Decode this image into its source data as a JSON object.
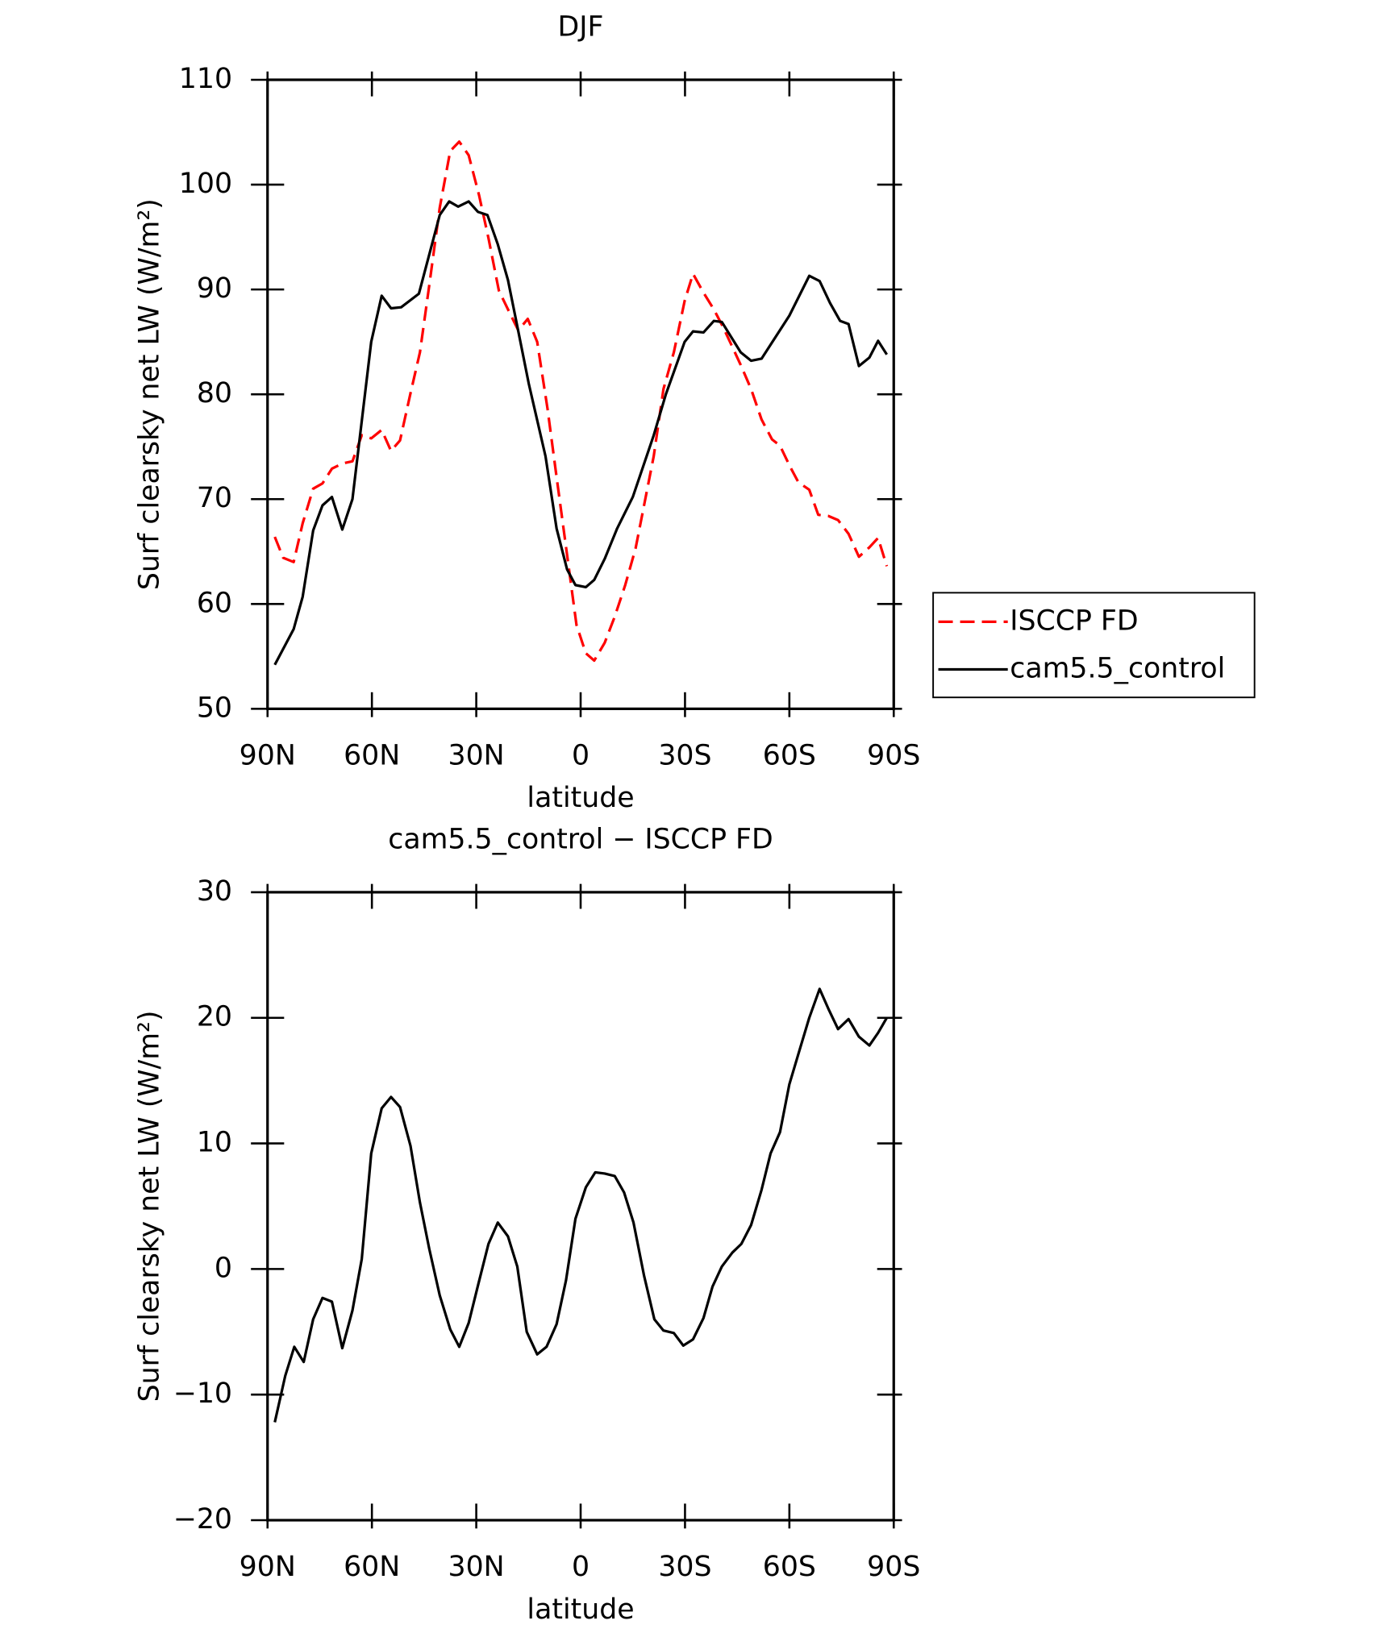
{
  "chart_data": [
    {
      "type": "line",
      "title": "DJF",
      "xlabel": "latitude",
      "ylabel": "Surf clearsky net LW (W/m²)",
      "xlim": [
        90,
        -90
      ],
      "ylim": [
        50,
        110
      ],
      "xticks": [
        {
          "value": 90,
          "label": "90N"
        },
        {
          "value": 60,
          "label": "60N"
        },
        {
          "value": 30,
          "label": "30N"
        },
        0,
        {
          "value": -30,
          "label": "30S"
        },
        {
          "value": -60,
          "label": "60S"
        },
        {
          "value": -90,
          "label": "90S"
        }
      ],
      "yticks": [
        50,
        60,
        70,
        80,
        90,
        100,
        110
      ],
      "legend": "outside-right",
      "series": [
        {
          "name": "ISCCP FD",
          "color": "#ff0000",
          "dash": true,
          "x": [
            87.9,
            85.5,
            82.5,
            79.9,
            76.9,
            74.2,
            71.5,
            68.5,
            65.6,
            62.9,
            60.2,
            57.2,
            54.5,
            51.9,
            48.9,
            46.2,
            43.5,
            40.5,
            37.5,
            34.9,
            32.2,
            29.2,
            26.5,
            23.5,
            20.6,
            17.9,
            15.2,
            12.5,
            9.5,
            6.9,
            3.9,
            1.2,
            -1.5,
            -3.9,
            -6.9,
            -9.8,
            -12.8,
            -15.8,
            -21,
            -23.8,
            -26.8,
            -29.9,
            -32.3,
            -35.3,
            -38.3,
            -40.8,
            -43.2,
            -46,
            -49,
            -52,
            -55,
            -57.3,
            -60.2,
            -62.6,
            -65.7,
            -68.3,
            -71.2,
            -74,
            -77,
            -80,
            -83,
            -85.5,
            -88
          ],
          "values": [
            66.4,
            64.4,
            64.0,
            67.7,
            71.0,
            71.5,
            72.9,
            73.4,
            73.6,
            76.1,
            75.8,
            76.6,
            74.6,
            75.6,
            80.1,
            84.0,
            90.4,
            97.8,
            103.2,
            104.1,
            102.8,
            99.0,
            94.9,
            89.9,
            87.9,
            86.1,
            87.2,
            85.0,
            78.6,
            72.1,
            64.7,
            58.0,
            55.3,
            54.6,
            56.3,
            58.8,
            61.8,
            65.3,
            74.1,
            80.5,
            84.0,
            88.9,
            91.5,
            89.7,
            88.1,
            86.5,
            84.8,
            82.8,
            80.5,
            77.6,
            75.7,
            75.1,
            73.1,
            71.6,
            70.9,
            68.5,
            68.4,
            68.0,
            66.7,
            64.5,
            65.4,
            66.3,
            63.6
          ]
        },
        {
          "name": "cam5.5_control",
          "color": "#000000",
          "dash": false,
          "x": [
            87.9,
            82.5,
            79.9,
            76.9,
            74.2,
            71.5,
            68.5,
            65.6,
            60.2,
            57.2,
            54.5,
            51.6,
            46.5,
            40.5,
            37.8,
            35.2,
            32.2,
            29.5,
            26.8,
            23.8,
            20.9,
            17.9,
            14.9,
            10.1,
            6.9,
            3.9,
            1.5,
            -1.5,
            -3.9,
            -6.9,
            -10.5,
            -15,
            -21,
            -24.5,
            -29.9,
            -32.3,
            -35.3,
            -38.3,
            -40.6,
            -46,
            -49,
            -52,
            -60,
            -65.7,
            -68.7,
            -71.7,
            -74.6,
            -77,
            -80,
            -83,
            -85.5,
            -88
          ],
          "values": [
            54.2,
            57.6,
            60.7,
            67.0,
            69.4,
            70.2,
            67.1,
            70.0,
            85.0,
            89.4,
            88.2,
            88.3,
            89.6,
            97.1,
            98.4,
            97.9,
            98.4,
            97.4,
            97.1,
            94.3,
            90.9,
            86.0,
            81.0,
            74.1,
            67.2,
            63.3,
            61.8,
            61.6,
            62.3,
            64.3,
            67.2,
            70.2,
            76.1,
            80.0,
            85.0,
            86.0,
            85.9,
            87.0,
            86.9,
            84.0,
            83.2,
            83.4,
            87.5,
            91.3,
            90.8,
            88.7,
            87.0,
            86.7,
            82.7,
            83.5,
            85.1,
            83.8
          ]
        }
      ]
    },
    {
      "type": "line",
      "title": "cam5.5_control − ISCCP FD",
      "xlabel": "latitude",
      "ylabel": "Surf clearsky net LW (W/m²)",
      "xlim": [
        90,
        -90
      ],
      "ylim": [
        -20,
        30
      ],
      "xticks": [
        {
          "value": 90,
          "label": "90N"
        },
        {
          "value": 60,
          "label": "60N"
        },
        {
          "value": 30,
          "label": "30N"
        },
        0,
        {
          "value": -30,
          "label": "30S"
        },
        {
          "value": -60,
          "label": "60S"
        },
        {
          "value": -90,
          "label": "90S"
        }
      ],
      "yticks": [
        {
          "value": -20,
          "label": "−20"
        },
        {
          "value": -10,
          "label": "−10"
        },
        0,
        10,
        20,
        30
      ],
      "series": [
        {
          "color": "#000000",
          "dash": false,
          "x": [
            87.9,
            84.9,
            82.3,
            79.6,
            76.9,
            74.2,
            71.5,
            68.5,
            65.6,
            62.9,
            60.2,
            57.2,
            54.5,
            51.9,
            48.9,
            46.2,
            43.5,
            40.5,
            37.5,
            34.9,
            32.2,
            29.5,
            26.5,
            23.8,
            20.9,
            18.2,
            15.5,
            12.5,
            9.8,
            6.9,
            4.2,
            1.5,
            -1.5,
            -4.2,
            -6.9,
            -9.8,
            -12.5,
            -15.2,
            -18.2,
            -21.2,
            -23.8,
            -26.8,
            -29.5,
            -32.3,
            -35.3,
            -37.9,
            -40.6,
            -43.6,
            -46.2,
            -49,
            -52,
            -54.6,
            -57.3,
            -60,
            -63,
            -65.7,
            -68.7,
            -71.4,
            -74,
            -77,
            -80,
            -83,
            -85.5,
            -88
          ],
          "values": [
            -12.2,
            -8.5,
            -6.2,
            -7.4,
            -4.0,
            -2.3,
            -2.6,
            -6.3,
            -3.3,
            0.8,
            9.2,
            12.8,
            13.7,
            12.9,
            9.8,
            5.3,
            1.6,
            -2.1,
            -4.8,
            -6.2,
            -4.3,
            -1.3,
            2.0,
            3.7,
            2.6,
            0.2,
            -5.0,
            -6.8,
            -6.2,
            -4.4,
            -0.9,
            4.0,
            6.5,
            7.7,
            7.6,
            7.4,
            6.1,
            3.7,
            -0.5,
            -4.0,
            -4.9,
            -5.1,
            -6.1,
            -5.6,
            -3.9,
            -1.4,
            0.2,
            1.3,
            2.0,
            3.5,
            6.3,
            9.2,
            10.9,
            14.7,
            17.5,
            20.0,
            22.3,
            20.6,
            19.1,
            19.9,
            18.5,
            17.8,
            18.8,
            20.0
          ]
        }
      ]
    }
  ]
}
